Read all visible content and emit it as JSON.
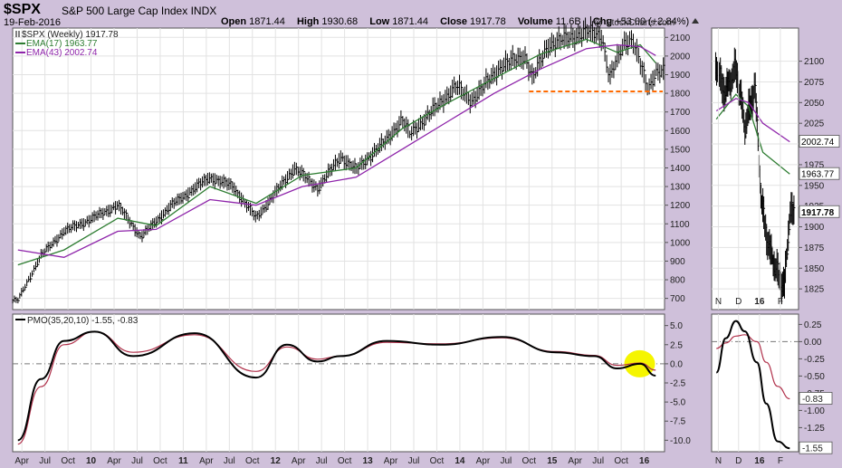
{
  "header": {
    "symbol": "$SPX",
    "name": "S&P 500 Large Cap Index",
    "exchange": "INDX",
    "date": "19-Feb-2016",
    "open_label": "Open",
    "open": "1871.44",
    "high_label": "High",
    "high": "1930.68",
    "low_label": "Low",
    "low": "1871.44",
    "close_label": "Close",
    "close": "1917.78",
    "volume_label": "Volume",
    "volume": "11.6B",
    "chg_label": "Chg",
    "chg": "+53.00 (+2.84%)",
    "copyright": "@ StockCharts.com"
  },
  "colors": {
    "background": "#cfc0da",
    "panel": "#ffffff",
    "price": "#000000",
    "ema17": "#2e7d32",
    "ema43": "#8e24aa",
    "pmo": "#000000",
    "signal": "#b0304a",
    "support": "#ff6a00",
    "highlight": "#f5f500"
  },
  "chart_data": [
    {
      "type": "line",
      "title": "",
      "legend": [
        {
          "label": "$SPX (Weekly) 1917.78",
          "marker": "bars"
        },
        {
          "label": "EMA(17) 1963.77",
          "color": "#2e7d32"
        },
        {
          "label": "EMA(43) 2002.74",
          "color": "#8e24aa"
        }
      ],
      "legend_position": "top-left",
      "x_tick_labels": [
        "Apr",
        "Jul",
        "Oct",
        "10",
        "Apr",
        "Jul",
        "Oct",
        "11",
        "Apr",
        "Jul",
        "Oct",
        "12",
        "Apr",
        "Jul",
        "Oct",
        "13",
        "Apr",
        "Jul",
        "Oct",
        "14",
        "Apr",
        "Jul",
        "Oct",
        "15",
        "Apr",
        "Jul",
        "Oct",
        "16"
      ],
      "ylim": [
        640,
        2150
      ],
      "y_ticks": [
        700,
        800,
        900,
        1000,
        1100,
        1200,
        1300,
        1400,
        1500,
        1600,
        1700,
        1800,
        1900,
        2000,
        2100
      ],
      "grid": true,
      "series": [
        {
          "name": "$SPX (Weekly)",
          "x": [
            "2009-03",
            "2009-06",
            "2009-09",
            "2009-12",
            "2010-04",
            "2010-07",
            "2010-11",
            "2011-04",
            "2011-07",
            "2011-10",
            "2012-03",
            "2012-06",
            "2012-09",
            "2012-11",
            "2013-03",
            "2013-05",
            "2013-06",
            "2013-10",
            "2013-12",
            "2014-02",
            "2014-06",
            "2014-09",
            "2014-10",
            "2014-12",
            "2015-03",
            "2015-05",
            "2015-07",
            "2015-08",
            "2015-10",
            "2015-11",
            "2016-01",
            "2016-02"
          ],
          "values": [
            690,
            930,
            1060,
            1115,
            1200,
            1030,
            1200,
            1350,
            1300,
            1130,
            1400,
            1290,
            1460,
            1390,
            1550,
            1660,
            1580,
            1750,
            1840,
            1760,
            1950,
            2000,
            1880,
            2060,
            2100,
            2130,
            2110,
            1880,
            2080,
            2090,
            1820,
            1917.78
          ]
        },
        {
          "name": "EMA(17)",
          "x": [
            "2009-03",
            "2009-09",
            "2010-04",
            "2010-09",
            "2011-04",
            "2011-10",
            "2012-04",
            "2012-11",
            "2013-05",
            "2013-11",
            "2014-05",
            "2014-11",
            "2015-05",
            "2015-09",
            "2015-12",
            "2016-02"
          ],
          "values": [
            880,
            960,
            1130,
            1090,
            1300,
            1210,
            1360,
            1400,
            1610,
            1750,
            1880,
            2010,
            2090,
            2020,
            2060,
            1963.77
          ]
        },
        {
          "name": "EMA(43)",
          "x": [
            "2009-03",
            "2009-09",
            "2010-04",
            "2010-09",
            "2011-04",
            "2011-10",
            "2012-04",
            "2012-11",
            "2013-05",
            "2013-11",
            "2014-05",
            "2014-11",
            "2015-05",
            "2015-09",
            "2015-12",
            "2016-02"
          ],
          "values": [
            960,
            920,
            1060,
            1070,
            1230,
            1200,
            1300,
            1350,
            1500,
            1650,
            1800,
            1930,
            2040,
            2060,
            2050,
            2002.74
          ]
        }
      ],
      "annotations": [
        "support line near 1810"
      ]
    },
    {
      "type": "line",
      "title": "",
      "x_tick_labels": [
        "N",
        "D",
        "16",
        "F"
      ],
      "ylim": [
        1800,
        2140
      ],
      "y_ticks": [
        1825,
        1850,
        1875,
        1900,
        1925,
        1950,
        1975,
        2000,
        2025,
        2050,
        2075,
        2100
      ],
      "value_labels": [
        "2002.74",
        "1963.77",
        "1917.78"
      ],
      "series": [
        {
          "name": "$SPX (Daily)",
          "x": [
            "Nov-02",
            "Nov-16",
            "Dec-01",
            "Dec-14",
            "Dec-29",
            "Jan-08",
            "Jan-20",
            "Feb-11",
            "Feb-19"
          ],
          "values": [
            2095,
            2060,
            2095,
            2020,
            2070,
            1930,
            1870,
            1825,
            1917.78
          ]
        },
        {
          "name": "EMA(17)",
          "x": [
            "Nov-02",
            "Dec-01",
            "Dec-20",
            "Jan-10",
            "Feb-19"
          ],
          "values": [
            2030,
            2060,
            2045,
            1990,
            1963.77
          ]
        },
        {
          "name": "EMA(43)",
          "x": [
            "Nov-02",
            "Dec-01",
            "Dec-20",
            "Jan-10",
            "Feb-19"
          ],
          "values": [
            2040,
            2055,
            2050,
            2025,
            2002.74
          ]
        }
      ]
    },
    {
      "type": "line",
      "title": "",
      "legend": [
        {
          "label": "PMO(35,20,10) -1.55, -0.83"
        }
      ],
      "x_tick_labels": [
        "Apr",
        "Jul",
        "Oct",
        "10",
        "Apr",
        "Jul",
        "Oct",
        "11",
        "Apr",
        "Jul",
        "Oct",
        "12",
        "Apr",
        "Jul",
        "Oct",
        "13",
        "Apr",
        "Jul",
        "Oct",
        "14",
        "Apr",
        "Jul",
        "Oct",
        "15",
        "Apr",
        "Jul",
        "Oct",
        "16"
      ],
      "ylim": [
        -11.5,
        6.5
      ],
      "y_ticks": [
        5.0,
        2.5,
        0.0,
        -2.5,
        -5.0,
        -7.5,
        -10.0
      ],
      "series": [
        {
          "name": "PMO",
          "x": [
            "2009-03",
            "2009-06",
            "2009-09",
            "2010-01",
            "2010-06",
            "2011-02",
            "2011-10",
            "2012-02",
            "2012-06",
            "2012-09",
            "2013-03",
            "2013-10",
            "2014-06",
            "2015-01",
            "2015-06",
            "2015-09",
            "2015-12",
            "2016-02"
          ],
          "values": [
            -10.0,
            -2.0,
            3.0,
            4.2,
            1.0,
            4.0,
            -1.8,
            2.5,
            0.3,
            1.0,
            3.0,
            2.5,
            3.5,
            1.5,
            1.0,
            -0.6,
            0.0,
            -1.55
          ]
        },
        {
          "name": "Signal",
          "x": [
            "2009-03",
            "2009-06",
            "2009-09",
            "2010-01",
            "2010-06",
            "2011-02",
            "2011-10",
            "2012-02",
            "2012-06",
            "2012-09",
            "2013-03",
            "2013-10",
            "2014-06",
            "2015-01",
            "2015-06",
            "2015-09",
            "2015-12",
            "2016-02"
          ],
          "values": [
            -10.5,
            -3.0,
            2.5,
            4.2,
            1.5,
            3.8,
            -1.0,
            2.2,
            0.6,
            1.0,
            2.8,
            2.6,
            3.4,
            1.6,
            1.1,
            -0.2,
            0.1,
            -0.83
          ]
        }
      ]
    },
    {
      "type": "line",
      "title": "",
      "x_tick_labels": [
        "N",
        "D",
        "16",
        "F"
      ],
      "ylim": [
        -1.6,
        0.4
      ],
      "y_ticks": [
        0.25,
        0.0,
        -0.25,
        -0.5,
        -0.75,
        -1.0,
        -1.25
      ],
      "value_labels": [
        "-0.83",
        "-1.55"
      ],
      "series": [
        {
          "name": "PMO",
          "x": [
            "Nov-02",
            "Nov-16",
            "Dec-01",
            "Dec-14",
            "Jan-01",
            "Jan-15",
            "Feb-01",
            "Feb-19"
          ],
          "values": [
            -0.45,
            0.05,
            0.3,
            0.15,
            -0.3,
            -0.9,
            -1.45,
            -1.55
          ]
        },
        {
          "name": "Signal",
          "x": [
            "Nov-02",
            "Nov-16",
            "Dec-01",
            "Dec-14",
            "Jan-01",
            "Jan-15",
            "Feb-01",
            "Feb-19"
          ],
          "values": [
            -0.1,
            -0.02,
            0.08,
            0.1,
            0.0,
            -0.3,
            -0.65,
            -0.83
          ]
        }
      ]
    }
  ]
}
